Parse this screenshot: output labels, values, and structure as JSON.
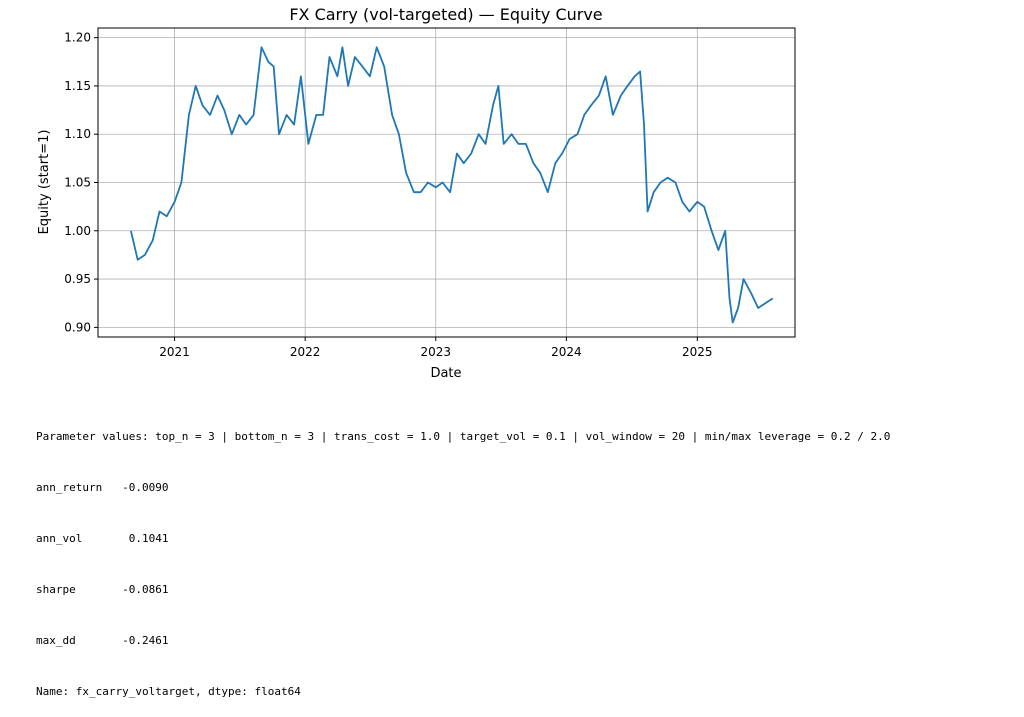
{
  "chart_data": {
    "type": "line",
    "title": "FX Carry (vol-targeted) — Equity Curve",
    "xlabel": "Date",
    "ylabel": "Equity (start=1)",
    "xlim": [
      "2020-06-01",
      "2025-10-01"
    ],
    "ylim": [
      0.89,
      1.21
    ],
    "x_ticks": [
      "2021",
      "2022",
      "2023",
      "2024",
      "2025"
    ],
    "y_ticks": [
      "0.90",
      "0.95",
      "1.00",
      "1.05",
      "1.10",
      "1.15",
      "1.20"
    ],
    "grid": true,
    "line_color": "#1f77b4",
    "series": [
      {
        "x": [
          "2020-09-01",
          "2020-09-20",
          "2020-10-10",
          "2020-11-01",
          "2020-11-20",
          "2020-12-10",
          "2021-01-01",
          "2021-01-20",
          "2021-02-10",
          "2021-03-01",
          "2021-03-20",
          "2021-04-10",
          "2021-05-01",
          "2021-05-20",
          "2021-06-10",
          "2021-07-01",
          "2021-07-20",
          "2021-08-10",
          "2021-09-01",
          "2021-09-20",
          "2021-10-05",
          "2021-10-20",
          "2021-11-10",
          "2021-12-01",
          "2021-12-20",
          "2022-01-10",
          "2022-02-01",
          "2022-02-20",
          "2022-03-10",
          "2022-04-01",
          "2022-04-15",
          "2022-05-01",
          "2022-05-20",
          "2022-06-10",
          "2022-07-01",
          "2022-07-20",
          "2022-08-10",
          "2022-09-01",
          "2022-09-20",
          "2022-10-10",
          "2022-11-01",
          "2022-11-20",
          "2022-12-10",
          "2023-01-01",
          "2023-01-20",
          "2023-02-10",
          "2023-03-01",
          "2023-03-20",
          "2023-04-10",
          "2023-05-01",
          "2023-05-20",
          "2023-06-10",
          "2023-06-25",
          "2023-07-10",
          "2023-08-01",
          "2023-08-20",
          "2023-09-10",
          "2023-10-01",
          "2023-10-20",
          "2023-11-10",
          "2023-12-01",
          "2023-12-20",
          "2024-01-10",
          "2024-02-01",
          "2024-02-20",
          "2024-03-10",
          "2024-04-01",
          "2024-04-20",
          "2024-05-10",
          "2024-06-01",
          "2024-06-20",
          "2024-07-10",
          "2024-07-25",
          "2024-08-05",
          "2024-08-15",
          "2024-09-01",
          "2024-09-20",
          "2024-10-10",
          "2024-11-01",
          "2024-11-20",
          "2024-12-10",
          "2025-01-01",
          "2025-01-20",
          "2025-02-10",
          "2025-03-01",
          "2025-03-20",
          "2025-04-01",
          "2025-04-10",
          "2025-04-25",
          "2025-05-10",
          "2025-06-01",
          "2025-06-20",
          "2025-07-10",
          "2025-07-31"
        ],
        "y": [
          1.0,
          0.97,
          0.975,
          0.99,
          1.02,
          1.015,
          1.03,
          1.05,
          1.12,
          1.15,
          1.13,
          1.12,
          1.14,
          1.125,
          1.1,
          1.12,
          1.11,
          1.12,
          1.19,
          1.175,
          1.17,
          1.1,
          1.12,
          1.11,
          1.16,
          1.09,
          1.12,
          1.12,
          1.18,
          1.16,
          1.19,
          1.15,
          1.18,
          1.17,
          1.16,
          1.19,
          1.17,
          1.12,
          1.1,
          1.06,
          1.04,
          1.04,
          1.05,
          1.045,
          1.05,
          1.04,
          1.08,
          1.07,
          1.08,
          1.1,
          1.09,
          1.13,
          1.15,
          1.09,
          1.1,
          1.09,
          1.09,
          1.07,
          1.06,
          1.04,
          1.07,
          1.08,
          1.095,
          1.1,
          1.12,
          1.13,
          1.14,
          1.16,
          1.12,
          1.14,
          1.15,
          1.16,
          1.165,
          1.11,
          1.02,
          1.04,
          1.05,
          1.055,
          1.05,
          1.03,
          1.02,
          1.03,
          1.025,
          1.0,
          0.98,
          1.0,
          0.93,
          0.905,
          0.92,
          0.95,
          0.935,
          0.92,
          0.925,
          0.93
        ]
      }
    ]
  },
  "stats": {
    "params": "Parameter values: top_n = 3 | bottom_n = 3 | trans_cost = 1.0 | target_vol = 0.1 | vol_window = 20 | min/max leverage = 0.2 / 2.0",
    "ann_return": "ann_return   -0.0090",
    "ann_vol": "ann_vol       0.1041",
    "sharpe": "sharpe       -0.0861",
    "max_dd": "max_dd       -0.2461",
    "name": "Name: fx_carry_voltarget, dtype: float64"
  }
}
